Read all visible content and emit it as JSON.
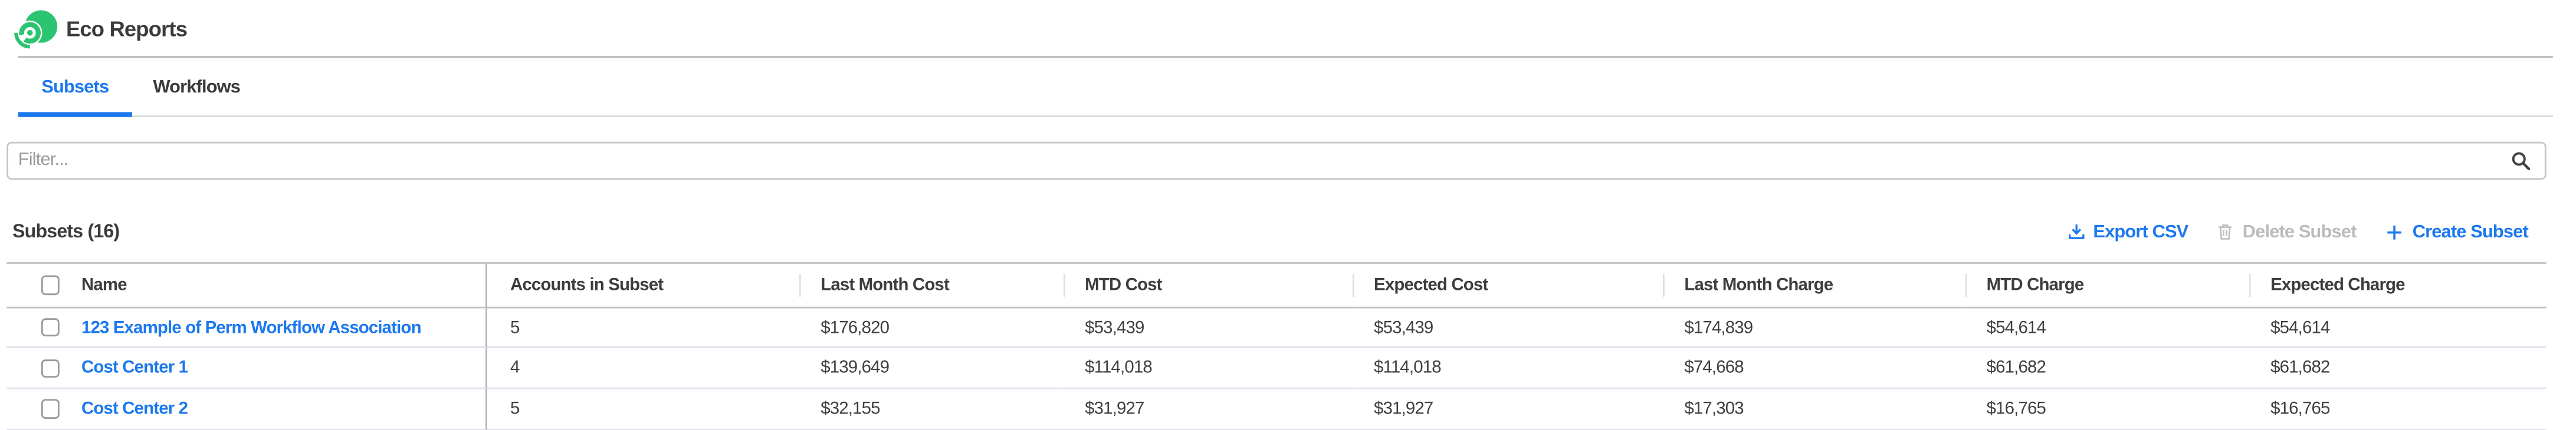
{
  "app": {
    "title": "Eco Reports",
    "logo_icon": "eco-spiral-logo"
  },
  "colors": {
    "brand_green": "#2bc470",
    "accent_blue": "#1b78ee",
    "disabled_gray": "#b9bcbe"
  },
  "tabs": [
    {
      "label": "Subsets",
      "active": true
    },
    {
      "label": "Workflows",
      "active": false
    }
  ],
  "filter": {
    "placeholder": "Filter...",
    "icon": "search-icon"
  },
  "list_header": {
    "title": "Subsets (16)",
    "actions": {
      "export": {
        "label": "Export CSV",
        "icon": "download-icon",
        "disabled": false
      },
      "delete": {
        "label": "Delete Subset",
        "icon": "trash-icon",
        "disabled": true
      },
      "create": {
        "label": "Create Subset",
        "icon": "plus-icon",
        "disabled": false
      }
    }
  },
  "table": {
    "columns": [
      "Name",
      "Accounts in Subset",
      "Last Month Cost",
      "MTD Cost",
      "Expected Cost",
      "Last Month Charge",
      "MTD Charge",
      "Expected Charge"
    ],
    "rows": [
      {
        "name": "123 Example of Perm Workflow Association",
        "values": [
          "5",
          "$176,820",
          "$53,439",
          "$53,439",
          "$174,839",
          "$54,614",
          "$54,614"
        ]
      },
      {
        "name": "Cost Center 1",
        "values": [
          "4",
          "$139,649",
          "$114,018",
          "$114,018",
          "$74,668",
          "$61,682",
          "$61,682"
        ]
      },
      {
        "name": "Cost Center 2",
        "values": [
          "5",
          "$32,155",
          "$31,927",
          "$31,927",
          "$17,303",
          "$16,765",
          "$16,765"
        ]
      }
    ]
  }
}
